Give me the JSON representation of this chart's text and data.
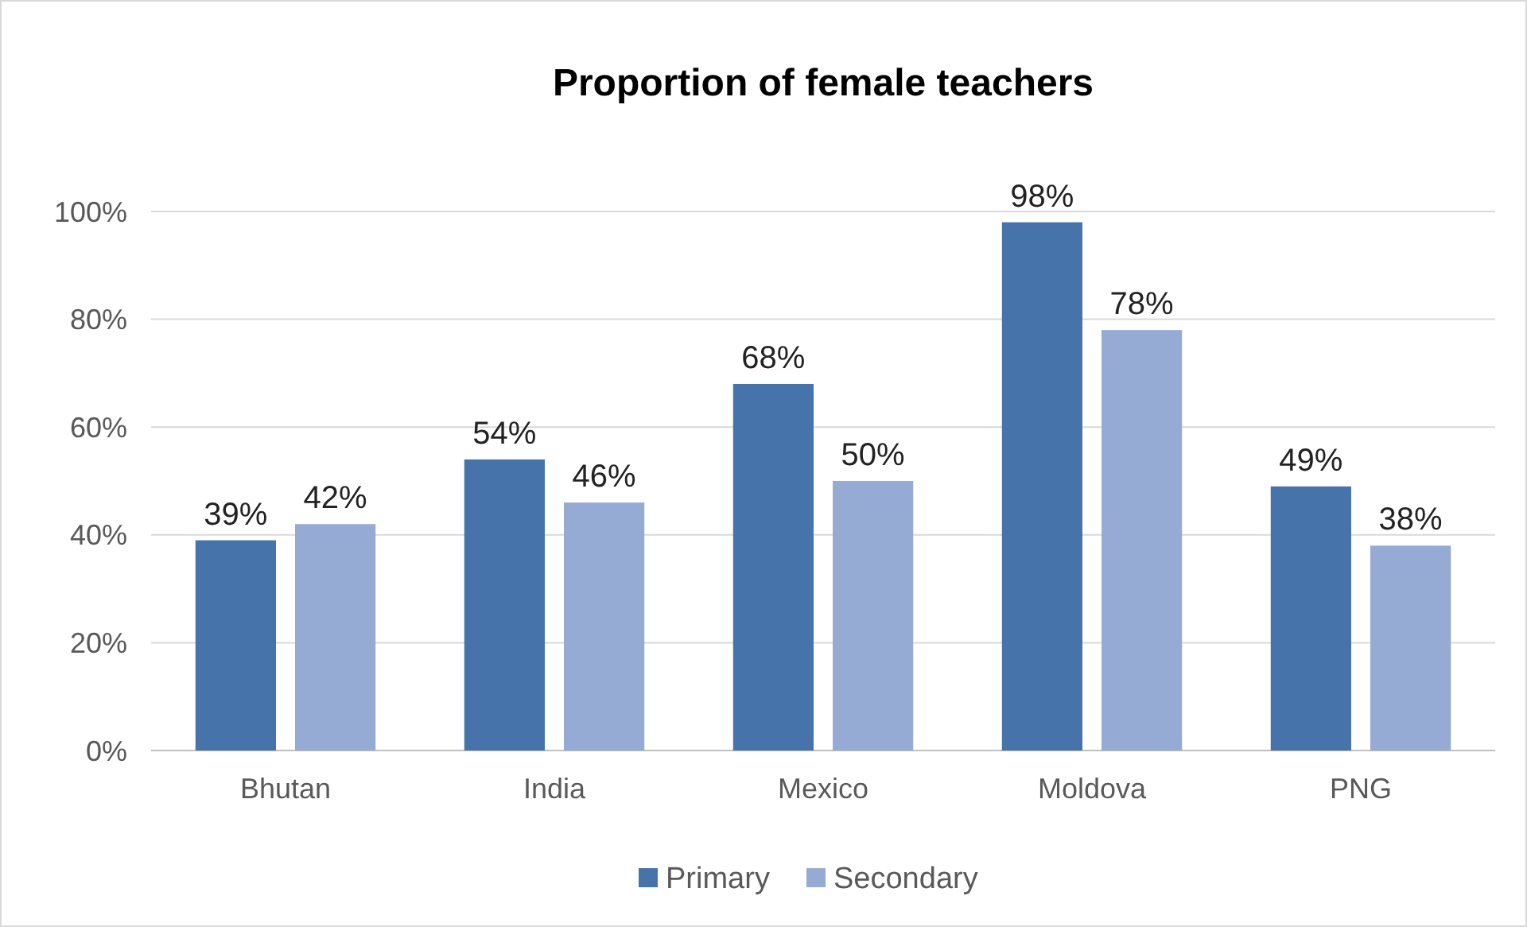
{
  "chart_data": {
    "type": "bar",
    "title": "Proportion of female teachers",
    "categories": [
      "Bhutan",
      "India",
      "Mexico",
      "Moldova",
      "PNG"
    ],
    "series": [
      {
        "name": "Primary",
        "color": "#4674aa",
        "values": [
          39,
          54,
          68,
          98,
          49
        ],
        "value_labels": [
          "39%",
          "54%",
          "68%",
          "98%",
          "49%"
        ]
      },
      {
        "name": "Secondary",
        "color": "#95abd4",
        "values": [
          42,
          46,
          50,
          78,
          38
        ],
        "value_labels": [
          "42%",
          "46%",
          "50%",
          "78%",
          "38%"
        ]
      }
    ],
    "ylim": [
      0,
      100
    ],
    "yticks": [
      {
        "value": 0,
        "label": "0%"
      },
      {
        "value": 20,
        "label": "20%"
      },
      {
        "value": 40,
        "label": "40%"
      },
      {
        "value": 60,
        "label": "60%"
      },
      {
        "value": 80,
        "label": "80%"
      },
      {
        "value": 100,
        "label": "100%"
      }
    ],
    "grid": "y",
    "legend": "bottom"
  }
}
